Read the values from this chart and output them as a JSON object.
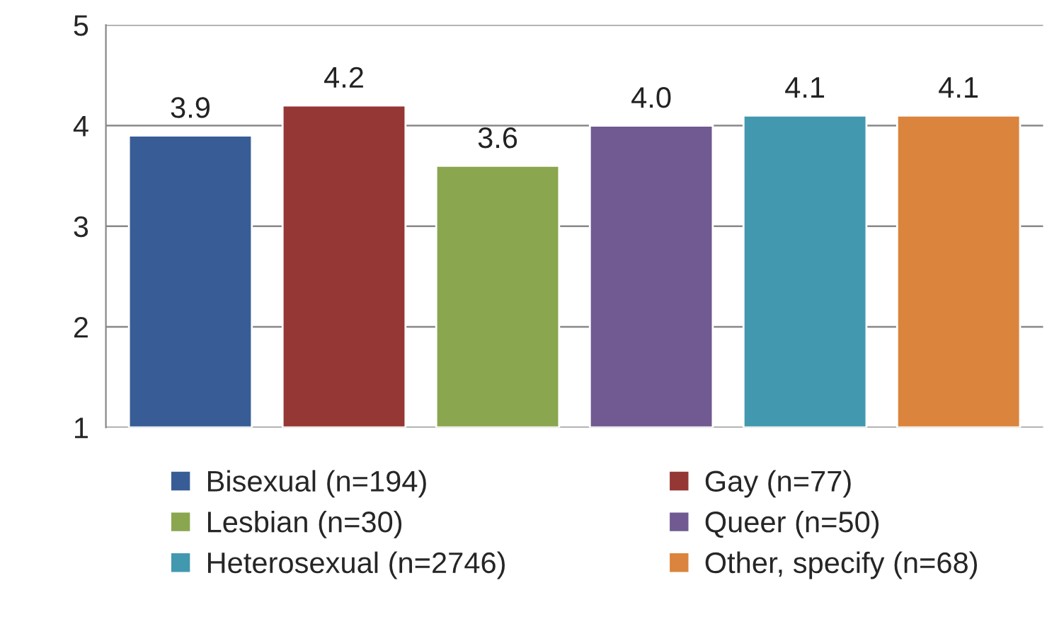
{
  "chart_data": {
    "type": "bar",
    "categories": [
      null,
      null,
      null,
      null,
      null,
      null
    ],
    "series": [
      {
        "name": "Bisexual (n=194)",
        "color": "#385d96",
        "values": [
          3.9,
          null,
          null,
          null,
          null,
          null
        ],
        "value_labels": [
          "3.9",
          null,
          null,
          null,
          null,
          null
        ]
      },
      {
        "name": "Gay (n=77)",
        "color": "#953735",
        "values": [
          null,
          4.2,
          null,
          null,
          null,
          null
        ],
        "value_labels": [
          null,
          "4.2",
          null,
          null,
          null,
          null
        ]
      },
      {
        "name": "Lesbian (n=30)",
        "color": "#8aa64f",
        "values": [
          null,
          null,
          3.6,
          null,
          null,
          null
        ],
        "value_labels": [
          null,
          null,
          "3.6",
          null,
          null,
          null
        ]
      },
      {
        "name": "Queer (n=50)",
        "color": "#705a91",
        "values": [
          null,
          null,
          null,
          4.0,
          null,
          null
        ],
        "value_labels": [
          null,
          null,
          null,
          "4.0",
          null,
          null
        ]
      },
      {
        "name": "Heterosexual (n=2746)",
        "color": "#4298af",
        "values": [
          null,
          null,
          null,
          null,
          4.1,
          null
        ],
        "value_labels": [
          null,
          null,
          null,
          null,
          "4.1",
          null
        ]
      },
      {
        "name": "Other, specify (n=68)",
        "color": "#db843d",
        "values": [
          null,
          null,
          null,
          null,
          null,
          4.1
        ],
        "value_labels": [
          null,
          null,
          null,
          null,
          null,
          "4.1"
        ]
      }
    ],
    "ylim": [
      1,
      5
    ],
    "yticks": [
      1,
      2,
      3,
      4,
      5
    ],
    "grid": "y",
    "legend": "bottom"
  }
}
